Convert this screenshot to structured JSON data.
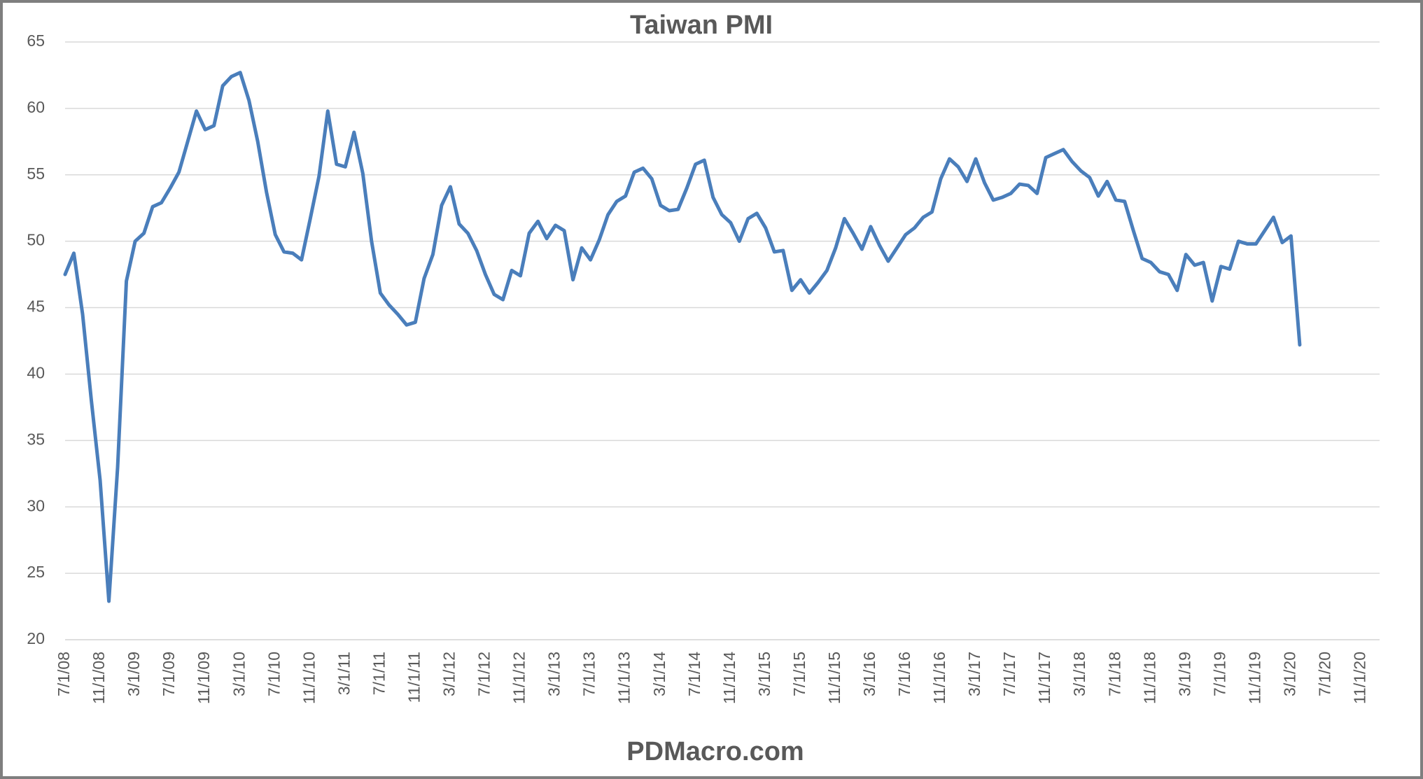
{
  "chart_data": {
    "type": "line",
    "title": "Taiwan PMI",
    "footer": "PDMacro.com",
    "categories": [
      "7/1/08",
      null,
      null,
      null,
      "11/1/08",
      null,
      null,
      null,
      "3/1/09",
      null,
      null,
      null,
      "7/1/09",
      null,
      null,
      null,
      "11/1/09",
      null,
      null,
      null,
      "3/1/10",
      null,
      null,
      null,
      "7/1/10",
      null,
      null,
      null,
      "11/1/10",
      null,
      null,
      null,
      "3/1/11",
      null,
      null,
      null,
      "7/1/11",
      null,
      null,
      null,
      "11/1/11",
      null,
      null,
      null,
      "3/1/12",
      null,
      null,
      null,
      "7/1/12",
      null,
      null,
      null,
      "11/1/12",
      null,
      null,
      null,
      "3/1/13",
      null,
      null,
      null,
      "7/1/13",
      null,
      null,
      null,
      "11/1/13",
      null,
      null,
      null,
      "3/1/14",
      null,
      null,
      null,
      "7/1/14",
      null,
      null,
      null,
      "11/1/14",
      null,
      null,
      null,
      "3/1/15",
      null,
      null,
      null,
      "7/1/15",
      null,
      null,
      null,
      "11/1/15",
      null,
      null,
      null,
      "3/1/16",
      null,
      null,
      null,
      "7/1/16",
      null,
      null,
      null,
      "11/1/16",
      null,
      null,
      null,
      "3/1/17",
      null,
      null,
      null,
      "7/1/17",
      null,
      null,
      null,
      "11/1/17",
      null,
      null,
      null,
      "3/1/18",
      null,
      null,
      null,
      "7/1/18",
      null,
      null,
      null,
      "11/1/18",
      null,
      null,
      null,
      "3/1/19",
      null,
      null,
      null,
      "7/1/19",
      null,
      null,
      null,
      "11/1/19",
      null,
      null,
      null,
      "3/1/20",
      null,
      null,
      null,
      "7/1/20",
      null,
      null,
      null,
      "11/1/20"
    ],
    "series": [
      {
        "name": "Taiwan PMI",
        "color": "#4a7ebb",
        "values": [
          47.5,
          49.1,
          44.5,
          38.0,
          32.0,
          22.9,
          33.0,
          47.0,
          50.0,
          50.6,
          52.6,
          52.9,
          54.0,
          55.2,
          57.5,
          59.8,
          58.4,
          58.7,
          61.7,
          62.4,
          62.7,
          60.6,
          57.5,
          53.7,
          50.5,
          49.2,
          49.1,
          48.6,
          51.7,
          54.9,
          59.8,
          55.8,
          55.6,
          58.2,
          55.1,
          50.0,
          46.1,
          45.2,
          44.5,
          43.7,
          43.9,
          47.2,
          49.0,
          52.7,
          54.1,
          51.3,
          50.6,
          49.3,
          47.5,
          46.0,
          45.6,
          47.8,
          47.4,
          50.6,
          51.5,
          50.2,
          51.2,
          50.8,
          47.1,
          49.5,
          48.6,
          50.1,
          52.0,
          53.0,
          53.4,
          55.2,
          55.5,
          54.7,
          52.7,
          52.3,
          52.4,
          54.0,
          55.8,
          56.1,
          53.3,
          52.0,
          51.4,
          50.0,
          51.7,
          52.1,
          51.0,
          49.2,
          49.3,
          46.3,
          47.1,
          46.1,
          46.9,
          47.8,
          49.5,
          51.7,
          50.6,
          49.4,
          51.1,
          49.7,
          48.5,
          49.5,
          50.5,
          51.0,
          51.8,
          52.2,
          54.7,
          56.2,
          55.6,
          54.5,
          56.2,
          54.4,
          53.1,
          53.3,
          53.6,
          54.3,
          54.2,
          53.6,
          56.3,
          56.6,
          56.9,
          56.0,
          55.3,
          54.8,
          53.4,
          54.5,
          53.1,
          53.0,
          50.8,
          48.7,
          48.4,
          47.7,
          47.5,
          46.3,
          49.0,
          48.2,
          48.4,
          45.5,
          48.1,
          47.9,
          50.0,
          49.8,
          49.8,
          50.8,
          51.8,
          49.9,
          50.4,
          42.2,
          null,
          null,
          null,
          null,
          null,
          null,
          null
        ]
      }
    ],
    "ylim": [
      20,
      65
    ],
    "yticks": [
      20,
      25,
      30,
      35,
      40,
      45,
      50,
      55,
      60,
      65
    ],
    "grid": true
  }
}
